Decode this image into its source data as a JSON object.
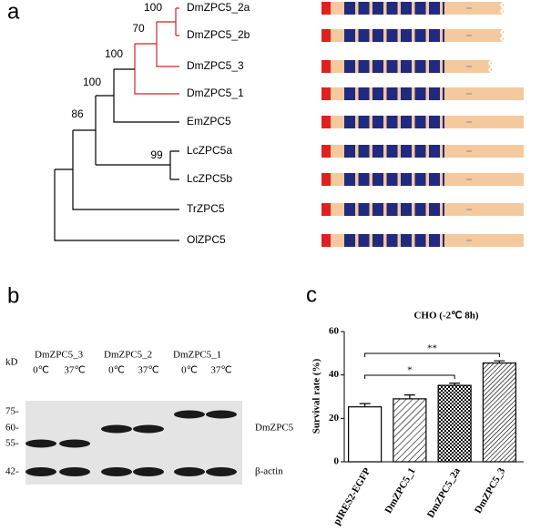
{
  "panel_a": {
    "label": "a",
    "bootstrap": [
      "100",
      "70",
      "100",
      "100",
      "86",
      "99"
    ],
    "taxa": [
      "DmZPC5_2a",
      "DmZPC5_2b",
      "DmZPC5_3",
      "DmZPC5_1",
      "EmZPC5",
      "LcZPC5a",
      "LcZPC5b",
      "TrZPC5",
      "OlZPC5"
    ]
  },
  "panel_b": {
    "label": "b",
    "unit": "kD",
    "groups": [
      {
        "name": "DmZPC5_3",
        "conditions": [
          "0℃",
          "37℃"
        ]
      },
      {
        "name": "DmZPC5_2",
        "conditions": [
          "0℃",
          "37℃"
        ]
      },
      {
        "name": "DmZPC5_1",
        "conditions": [
          "0℃",
          "37℃"
        ]
      }
    ],
    "markers": [
      "75-",
      "60-",
      "55-",
      "42-"
    ],
    "bands": [
      "DmZPC5",
      "β-actin"
    ]
  },
  "chart_data": {
    "type": "bar",
    "panel_label": "c",
    "title": "CHO (-2℃ 8h)",
    "y_label": "Survival rate (%)",
    "categories": [
      "pIRES2-EGFP",
      "DmZPC5_1",
      "DmZPC5_2a",
      "DmZPC5_3"
    ],
    "values": [
      25.3,
      29,
      35.2,
      45.5
    ],
    "errors": [
      1.5,
      1.8,
      1,
      1
    ],
    "significance": [
      null,
      null,
      "*",
      "**"
    ],
    "ylim": [
      0,
      60
    ],
    "yticks": [
      0,
      20,
      40,
      60
    ]
  }
}
